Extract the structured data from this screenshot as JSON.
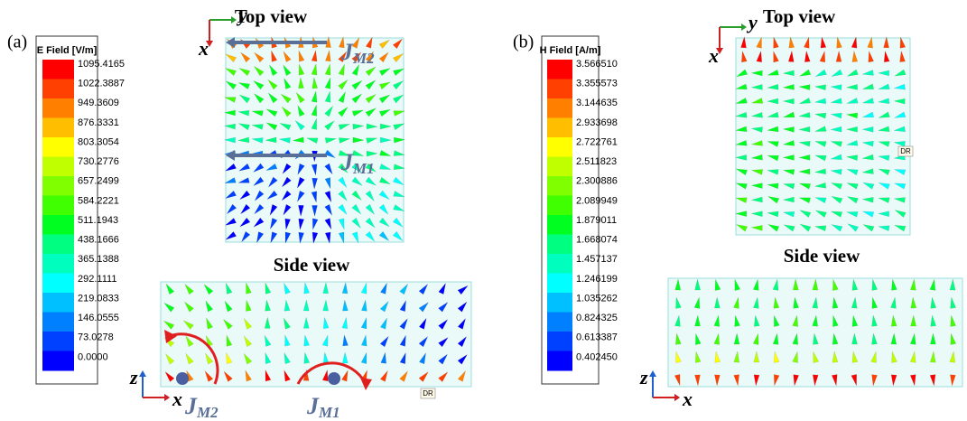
{
  "panels": [
    {
      "label": "(a)",
      "legend": {
        "title": "E Field [V/m]",
        "values": [
          "1095.4165",
          "1022.3887",
          "949.3609",
          "876.3331",
          "803.3054",
          "730.2776",
          "657.2499",
          "584.2221",
          "511.1943",
          "438.1666",
          "365.1388",
          "292.1111",
          "219.0833",
          "146.0555",
          "73.0278",
          "0.0000"
        ]
      },
      "top_view": {
        "title": "Top view",
        "axes": [
          "y",
          "x"
        ],
        "currents": [
          {
            "symbol": "J",
            "sub": "M2"
          },
          {
            "symbol": "J",
            "sub": "M1"
          }
        ]
      },
      "side_view": {
        "title": "Side view",
        "axes": [
          "z",
          "x"
        ],
        "currents": [
          {
            "symbol": "J",
            "sub": "M2"
          },
          {
            "symbol": "J",
            "sub": "M1"
          }
        ],
        "tag": "DR"
      }
    },
    {
      "label": "(b)",
      "legend": {
        "title": "H Field [A/m]",
        "values": [
          "3.566510",
          "3.355573",
          "3.144635",
          "2.933698",
          "2.722761",
          "2.511823",
          "2.300886",
          "2.089949",
          "1.879011",
          "1.668074",
          "1.457137",
          "1.246199",
          "1.035262",
          "0.824325",
          "0.613387",
          "0.402450"
        ]
      },
      "top_view": {
        "title": "Top view",
        "axes": [
          "y",
          "x"
        ],
        "tag": "DR"
      },
      "side_view": {
        "title": "Side view",
        "axes": [
          "z",
          "x"
        ]
      }
    }
  ]
}
